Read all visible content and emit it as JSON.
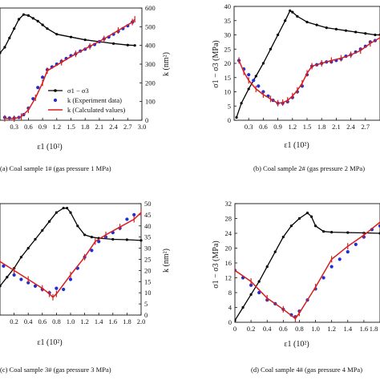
{
  "chart_data": [
    {
      "type": "line",
      "caption": "(a) Coal sample 1# (gas pressure 1 MPa)",
      "xlabel": "ε1 (10²)",
      "right_ylabel": "k (nm²)",
      "xlim": [
        0.0,
        3.0
      ],
      "xticks": [
        "0.3",
        "0.6",
        "0.9",
        "1.2",
        "1.5",
        "1.8",
        "2.1",
        "2.4",
        "2.7",
        "3.0"
      ],
      "right_ylim": [
        0,
        600
      ],
      "right_yticks": [
        "0",
        "100",
        "200",
        "300",
        "400",
        "500",
        "600"
      ],
      "legend": [
        "σ1 − σ3",
        "k (Experiment data)",
        "k (Calculated values)"
      ],
      "series": [
        {
          "name": "σ1 − σ3",
          "axis": "right",
          "color": "#000000",
          "x": [
            0.0,
            0.1,
            0.2,
            0.3,
            0.4,
            0.5,
            0.6,
            0.7,
            0.8,
            0.9,
            1.0,
            1.2,
            1.5,
            1.8,
            2.1,
            2.4,
            2.7,
            2.85
          ],
          "y": [
            360,
            390,
            440,
            490,
            540,
            565,
            560,
            545,
            530,
            510,
            490,
            460,
            445,
            430,
            420,
            410,
            402,
            400
          ]
        },
        {
          "name": "k (Experiment data)",
          "axis": "right",
          "color": "#1f2fd6",
          "x": [
            0.1,
            0.2,
            0.3,
            0.4,
            0.5,
            0.6,
            0.7,
            0.8,
            0.9,
            1.0,
            1.1,
            1.2,
            1.3,
            1.4,
            1.5,
            1.6,
            1.7,
            1.8,
            1.9,
            2.0,
            2.1,
            2.2,
            2.3,
            2.4,
            2.5,
            2.6,
            2.7,
            2.8
          ],
          "y": [
            15,
            12,
            12,
            15,
            30,
            65,
            115,
            175,
            230,
            270,
            285,
            300,
            315,
            330,
            345,
            355,
            370,
            380,
            395,
            405,
            420,
            435,
            445,
            460,
            475,
            490,
            505,
            525
          ]
        },
        {
          "name": "k (Calculated values)",
          "axis": "right",
          "color": "#d61f1f",
          "x": [
            0.1,
            0.3,
            0.45,
            0.6,
            0.75,
            0.9,
            1.0,
            1.3,
            1.6,
            1.9,
            2.2,
            2.5,
            2.8,
            2.85
          ],
          "y": [
            10,
            8,
            20,
            55,
            120,
            200,
            265,
            310,
            355,
            395,
            435,
            480,
            525,
            540
          ]
        }
      ]
    },
    {
      "type": "line",
      "caption": "(b) Coal sample 2# (gas pressure 2 MPa)",
      "xlabel": "ε1 (10²)",
      "ylabel": "σ1 − σ3 (MPa)",
      "xlim": [
        0.0,
        3.0
      ],
      "xticks": [
        "0.3",
        "0.6",
        "0.9",
        "1.2",
        "1.5",
        "1.8",
        "2.1",
        "2.4",
        "2.7"
      ],
      "ylim": [
        0,
        40
      ],
      "yticks": [
        "0",
        "5",
        "10",
        "15",
        "20",
        "25",
        "30",
        "35",
        "40"
      ],
      "series": [
        {
          "name": "σ1 − σ3",
          "color": "#000000",
          "x": [
            0.05,
            0.15,
            0.3,
            0.45,
            0.6,
            0.75,
            0.9,
            1.05,
            1.15,
            1.2,
            1.3,
            1.5,
            1.7,
            1.9,
            2.1,
            2.3,
            2.5,
            2.7,
            2.9,
            3.0
          ],
          "y": [
            1,
            6,
            11,
            15.5,
            20,
            25,
            30,
            35,
            38.5,
            38,
            36.5,
            34.5,
            33.5,
            32.5,
            32,
            31.5,
            31,
            30.5,
            30,
            30
          ]
        },
        {
          "name": "k (Experiment data)",
          "color": "#1f2fd6",
          "x": [
            0.1,
            0.2,
            0.3,
            0.4,
            0.5,
            0.6,
            0.7,
            0.8,
            0.9,
            1.0,
            1.1,
            1.2,
            1.3,
            1.4,
            1.5,
            1.6,
            1.7,
            1.8,
            1.9,
            2.0,
            2.1,
            2.2,
            2.3,
            2.4,
            2.5,
            2.6,
            2.7,
            2.8,
            2.9
          ],
          "y": [
            21,
            18,
            16,
            14,
            12,
            10,
            8.5,
            7,
            6,
            6,
            6.5,
            8,
            10,
            12,
            16,
            19,
            19.5,
            20,
            20.5,
            20.5,
            21,
            21.5,
            22.5,
            23,
            24,
            25,
            26,
            27.5,
            28
          ]
        },
        {
          "name": "k (Calculated values)",
          "color": "#d61f1f",
          "x": [
            0.1,
            0.2,
            0.3,
            0.45,
            0.6,
            0.75,
            0.9,
            1.0,
            1.1,
            1.2,
            1.3,
            1.4,
            1.5,
            1.6,
            1.8,
            2.0,
            2.2,
            2.4,
            2.6,
            2.8,
            3.0
          ],
          "y": [
            21,
            17,
            14,
            11,
            9,
            7.5,
            6,
            6.2,
            7,
            8.5,
            10.5,
            13,
            16.5,
            19,
            20,
            21,
            21.8,
            23,
            24.5,
            27,
            29
          ]
        }
      ]
    },
    {
      "type": "line",
      "caption": "(c) Coal sample 3# (gas pressure 3 MPa)",
      "xlabel": "ε1 (10²)",
      "right_ylabel": "k (nm²)",
      "xlim": [
        0.0,
        2.0
      ],
      "xticks": [
        "0.2",
        "0.4",
        "0.6",
        "0.8",
        "1.0",
        "1.2",
        "1.4",
        "1.6",
        "1.8",
        "2.0"
      ],
      "right_ylim": [
        0,
        50
      ],
      "right_yticks": [
        "0",
        "5",
        "10",
        "15",
        "20",
        "25",
        "30",
        "35",
        "40",
        "45",
        "50"
      ],
      "series": [
        {
          "name": "σ1 − σ3",
          "color": "#000000",
          "x": [
            0.0,
            0.1,
            0.2,
            0.3,
            0.4,
            0.5,
            0.6,
            0.7,
            0.8,
            0.9,
            0.95,
            1.0,
            1.1,
            1.2,
            1.3,
            1.4,
            1.6,
            1.8,
            2.0
          ],
          "y": [
            13,
            17,
            21,
            26,
            30,
            34,
            38,
            42,
            46,
            48,
            48,
            46,
            40,
            36,
            35,
            34.5,
            34,
            33.8,
            33.5
          ]
        },
        {
          "name": "k (Experiment data)",
          "color": "#1f2fd6",
          "x": [
            0.05,
            0.2,
            0.3,
            0.4,
            0.5,
            0.6,
            0.7,
            0.8,
            0.9,
            1.0,
            1.1,
            1.2,
            1.3,
            1.4,
            1.5,
            1.6,
            1.7,
            1.8,
            1.9
          ],
          "y": [
            22,
            18,
            16,
            14.5,
            13,
            11.5,
            10,
            12,
            11.5,
            16,
            21,
            26,
            29,
            33,
            35,
            37,
            39,
            43,
            45
          ]
        },
        {
          "name": "k (Calculated values)",
          "color": "#d61f1f",
          "x": [
            0.0,
            0.2,
            0.4,
            0.6,
            0.7,
            0.75,
            0.8,
            1.0,
            1.2,
            1.35,
            1.5,
            1.7,
            1.9,
            2.0
          ],
          "y": [
            24,
            20,
            16,
            12,
            9.5,
            8,
            9.5,
            18,
            26,
            33,
            36,
            39.5,
            43,
            46
          ]
        }
      ]
    },
    {
      "type": "line",
      "caption": "(d) Coal sample 4# (gas pressure 4 MPa)",
      "xlabel": "ε1 (10²)",
      "ylabel": "σ1 − σ3 (MPa)",
      "xlim": [
        0.0,
        1.8
      ],
      "xticks": [
        "0",
        "0.2",
        "0.4",
        "0.6",
        "0.8",
        "1.0",
        "1.2",
        "1.4",
        "1.6",
        "1.8"
      ],
      "ylim": [
        0,
        32
      ],
      "yticks": [
        "0",
        "4",
        "8",
        "12",
        "16",
        "20",
        "24",
        "28",
        "32"
      ],
      "series": [
        {
          "name": "σ1 − σ3",
          "color": "#000000",
          "x": [
            0.0,
            0.1,
            0.2,
            0.3,
            0.4,
            0.5,
            0.6,
            0.7,
            0.8,
            0.9,
            0.95,
            1.0,
            1.1,
            1.2,
            1.4,
            1.6,
            1.8
          ],
          "y": [
            0.5,
            4,
            7.5,
            11,
            15,
            19,
            23,
            26,
            28,
            29.5,
            28.5,
            26,
            24.5,
            24.3,
            24.2,
            24.1,
            24
          ]
        },
        {
          "name": "k (Experiment data)",
          "color": "#1f2fd6",
          "x": [
            0.0,
            0.1,
            0.2,
            0.3,
            0.4,
            0.5,
            0.6,
            0.7,
            0.75,
            0.8,
            0.9,
            1.0,
            1.1,
            1.2,
            1.3,
            1.4,
            1.5,
            1.6,
            1.7,
            1.8
          ],
          "y": [
            14,
            12,
            10,
            8,
            6,
            5,
            3.5,
            2,
            1.5,
            3,
            6,
            9,
            12,
            15,
            17,
            19,
            21,
            23,
            25,
            26
          ]
        },
        {
          "name": "k (Calculated values)",
          "color": "#d61f1f",
          "x": [
            0.0,
            0.2,
            0.4,
            0.6,
            0.75,
            0.8,
            1.0,
            1.2,
            1.4,
            1.6,
            1.8
          ],
          "y": [
            14,
            11,
            6.5,
            3.5,
            1,
            2.5,
            9.5,
            17,
            20.5,
            23.5,
            27
          ]
        }
      ]
    }
  ]
}
